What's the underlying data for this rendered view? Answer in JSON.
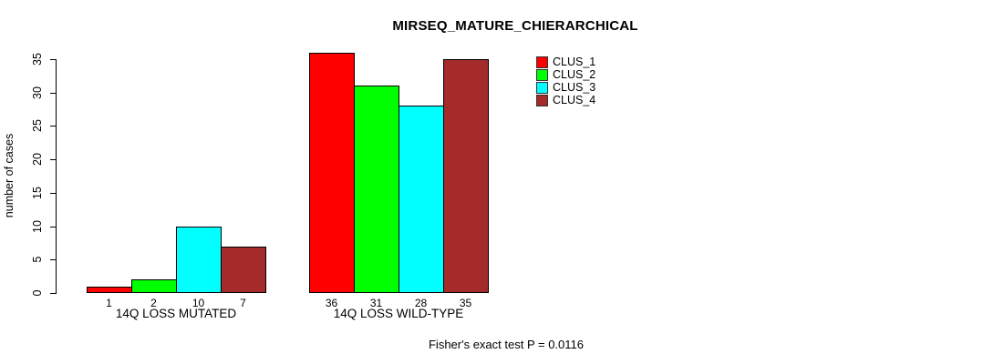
{
  "title": "MIRSEQ_MATURE_CHIERARCHICAL",
  "footer": "Fisher's exact test P = 0.0116",
  "chart_data": {
    "type": "bar",
    "title": "MIRSEQ_MATURE_CHIERARCHICAL",
    "xlabel": "",
    "ylabel": "number of cases",
    "categories": [
      "14Q LOSS MUTATED",
      "14Q LOSS WILD-TYPE"
    ],
    "series": [
      {
        "name": "CLUS_1",
        "color": "#ff0000",
        "values": [
          1,
          36
        ]
      },
      {
        "name": "CLUS_2",
        "color": "#00ff00",
        "values": [
          2,
          31
        ]
      },
      {
        "name": "CLUS_3",
        "color": "#00ffff",
        "values": [
          10,
          28
        ]
      },
      {
        "name": "CLUS_4",
        "color": "#a52a2a",
        "values": [
          7,
          35
        ]
      }
    ],
    "yticks": [
      0,
      5,
      10,
      15,
      20,
      25,
      30,
      35
    ],
    "ylim": [
      0,
      36
    ],
    "bar_value_labels": [
      [
        "1",
        "2",
        "10",
        "7"
      ],
      [
        "36",
        "31",
        "28",
        "35"
      ]
    ],
    "legend_entries": [
      "CLUS_1",
      "CLUS_2",
      "CLUS_3",
      "CLUS_4"
    ],
    "legend_position": "top-right",
    "grid": false,
    "bar_border_color": "#000000",
    "axis_color": "#000000",
    "annotation": "Fisher's exact test P = 0.0116"
  }
}
